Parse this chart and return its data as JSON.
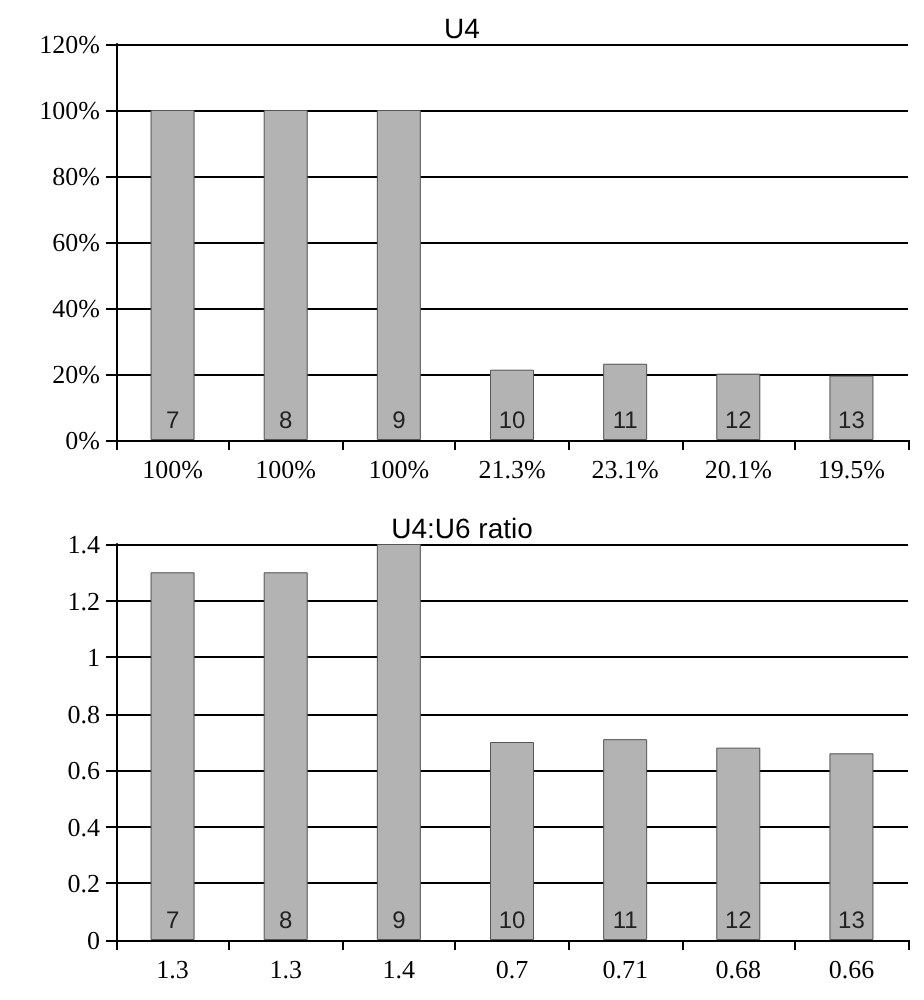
{
  "chart_data": [
    {
      "type": "bar",
      "title": "U4",
      "categories": [
        "7",
        "8",
        "9",
        "10",
        "11",
        "12",
        "13"
      ],
      "values": [
        100,
        100,
        100,
        21.3,
        23.1,
        20.1,
        19.5
      ],
      "color": "#b3b3b3",
      "value_labels": [
        "100%",
        "100%",
        "100%",
        "21.3%",
        "23.1%",
        "20.1%",
        "19.5%"
      ],
      "ylim": [
        0,
        120
      ],
      "yticks": [
        {
          "value": 0,
          "label": "0%"
        },
        {
          "value": 20,
          "label": "20%"
        },
        {
          "value": 40,
          "label": "40%"
        },
        {
          "value": 60,
          "label": "60%"
        },
        {
          "value": 80,
          "label": "80%"
        },
        {
          "value": 100,
          "label": "100%"
        },
        {
          "value": 120,
          "label": "120%"
        }
      ],
      "grid": "y"
    },
    {
      "type": "bar",
      "title": "U4:U6 ratio",
      "categories": [
        "7",
        "8",
        "9",
        "10",
        "11",
        "12",
        "13"
      ],
      "values": [
        1.3,
        1.3,
        1.4,
        0.7,
        0.71,
        0.68,
        0.66
      ],
      "color": "#b3b3b3",
      "value_labels": [
        "1.3",
        "1.3",
        "1.4",
        "0.7",
        "0.71",
        "0.68",
        "0.66"
      ],
      "ylim": [
        0,
        1.4
      ],
      "yticks": [
        0,
        0.2,
        0.4,
        0.6,
        0.8,
        1,
        1.2,
        1.4
      ],
      "grid": "y"
    }
  ]
}
